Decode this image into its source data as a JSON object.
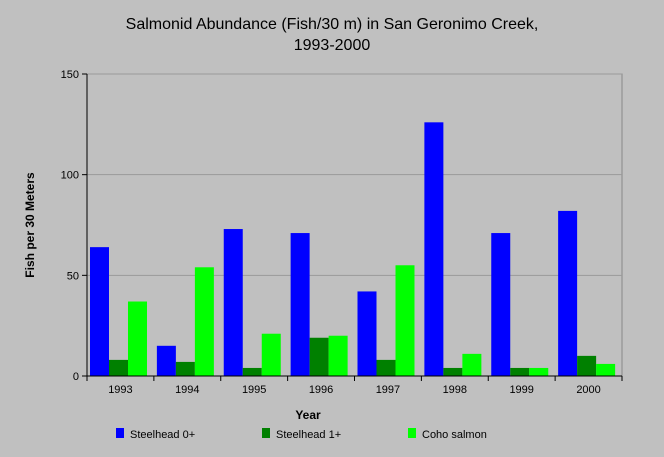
{
  "chart_data": {
    "type": "bar",
    "title": [
      "Salmonid Abundance (Fish/30 m) in San Geronimo Creek,",
      "1993-2000"
    ],
    "xlabel": "Year",
    "ylabel": "Fish per 30 Meters",
    "ylim": [
      0,
      150
    ],
    "yticks": [
      0,
      50,
      100,
      150
    ],
    "grid": true,
    "legend_position": "bottom",
    "categories": [
      "1993",
      "1994",
      "1995",
      "1996",
      "1997",
      "1998",
      "1999",
      "2000"
    ],
    "series": [
      {
        "name": "Steelhead 0+",
        "color": "#0000ff",
        "values": [
          64,
          15,
          73,
          71,
          42,
          126,
          71,
          82
        ]
      },
      {
        "name": "Steelhead 1+",
        "color": "#008000",
        "values": [
          8,
          7,
          4,
          19,
          8,
          4,
          4,
          10
        ]
      },
      {
        "name": "Coho salmon",
        "color": "#00ff00",
        "values": [
          37,
          54,
          21,
          20,
          55,
          11,
          4,
          6
        ]
      }
    ]
  }
}
